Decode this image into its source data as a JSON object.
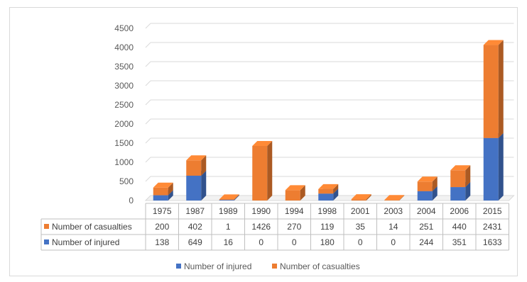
{
  "chart_data": {
    "type": "bar",
    "stacked": true,
    "three_d": true,
    "categories": [
      "1975",
      "1987",
      "1989",
      "1990",
      "1994",
      "1998",
      "2001",
      "2003",
      "2004",
      "2006",
      "2015"
    ],
    "series": [
      {
        "name": "Number of injured",
        "color": "#4472c4",
        "values": [
          138,
          649,
          16,
          0,
          0,
          180,
          0,
          0,
          244,
          351,
          1633
        ]
      },
      {
        "name": "Number of casualties",
        "color": "#ed7d31",
        "values": [
          200,
          402,
          1,
          1426,
          270,
          119,
          35,
          14,
          251,
          440,
          2431
        ]
      }
    ],
    "y_ticks": [
      "0",
      "500",
      "1000",
      "1500",
      "2000",
      "2500",
      "3000",
      "3500",
      "4000",
      "4500"
    ],
    "ylim": [
      0,
      4500
    ],
    "grid": true,
    "data_table": true,
    "legend_position": "bottom"
  }
}
